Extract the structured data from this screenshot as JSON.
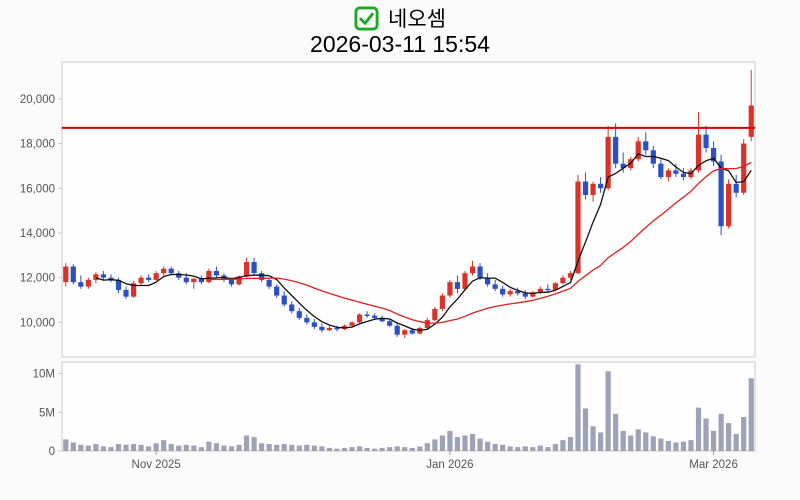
{
  "header": {
    "stock_name": "네오셈",
    "timestamp": "2026-03-11 15:54",
    "checkbox_icon_color": "#1fa826"
  },
  "chart_data": {
    "type": "candlestick",
    "title": "네오셈",
    "subtitle": "2026-03-11 15:54",
    "panels": [
      "price",
      "volume"
    ],
    "price_axis": {
      "tick_values": [
        10000,
        12000,
        14000,
        16000,
        18000,
        20000
      ],
      "tick_labels": [
        "10,000",
        "12,000",
        "14,000",
        "16,000",
        "18,000",
        "20,000"
      ],
      "range": [
        8450,
        21650
      ]
    },
    "volume_axis": {
      "tick_values": [
        0,
        5,
        10
      ],
      "tick_labels": [
        "0",
        "5M",
        "10M"
      ],
      "range": [
        0,
        11.5
      ],
      "unit": "millions"
    },
    "x_axis": {
      "ticks": [
        {
          "label": "Nov 2025",
          "index": 12
        },
        {
          "label": "Jan 2026",
          "index": 51
        },
        {
          "label": "Mar 2026",
          "index": 86
        }
      ]
    },
    "reference_line": {
      "value": 18700,
      "color": "#d40000"
    },
    "moving_averages": [
      {
        "window": 5,
        "color": "#111111"
      },
      {
        "window": 20,
        "color": "#e02020"
      }
    ],
    "colors": {
      "up": "#d9342b",
      "down": "#2b4fc4",
      "volume_bar": "#9ea2b6",
      "panel_fill": "#fefeff",
      "panel_border": "#c9c9c9",
      "axis_text": "#555555"
    },
    "ohlcv_fields": [
      "open",
      "high",
      "low",
      "close",
      "volume_millions"
    ],
    "candles": [
      [
        11800,
        12650,
        11600,
        12500,
        1.5
      ],
      [
        12500,
        12600,
        11700,
        11800,
        1.1
      ],
      [
        11800,
        12100,
        11500,
        11600,
        0.8
      ],
      [
        11600,
        12000,
        11500,
        11900,
        0.7
      ],
      [
        11900,
        12250,
        11750,
        12150,
        0.9
      ],
      [
        12150,
        12300,
        11900,
        12000,
        0.6
      ],
      [
        12000,
        12150,
        11800,
        11900,
        0.5
      ],
      [
        11900,
        12000,
        11300,
        11450,
        0.9
      ],
      [
        11450,
        11600,
        11050,
        11150,
        0.8
      ],
      [
        11150,
        11850,
        11100,
        11750,
        0.9
      ],
      [
        11750,
        12100,
        11650,
        12000,
        0.8
      ],
      [
        12000,
        12150,
        11800,
        11900,
        0.6
      ],
      [
        11900,
        12300,
        11850,
        12200,
        1.0
      ],
      [
        12200,
        12500,
        12100,
        12400,
        1.4
      ],
      [
        12400,
        12500,
        12100,
        12200,
        0.9
      ],
      [
        12200,
        12300,
        11900,
        12000,
        0.7
      ],
      [
        12000,
        12200,
        11700,
        11800,
        0.8
      ],
      [
        11800,
        12000,
        11500,
        11950,
        0.7
      ],
      [
        11950,
        12100,
        11700,
        11800,
        0.5
      ],
      [
        11800,
        12400,
        11750,
        12300,
        1.2
      ],
      [
        12300,
        12500,
        12000,
        12100,
        1.0
      ],
      [
        12100,
        12200,
        11800,
        11900,
        0.7
      ],
      [
        11900,
        12000,
        11600,
        11700,
        0.6
      ],
      [
        11700,
        12100,
        11650,
        12050,
        0.8
      ],
      [
        12050,
        12900,
        12000,
        12700,
        2.0
      ],
      [
        12700,
        12900,
        12100,
        12200,
        1.8
      ],
      [
        12200,
        12300,
        11800,
        11900,
        1.0
      ],
      [
        11900,
        12000,
        11500,
        11600,
        0.9
      ],
      [
        11600,
        11700,
        11100,
        11200,
        0.8
      ],
      [
        11200,
        11400,
        10700,
        10800,
        0.9
      ],
      [
        10800,
        10950,
        10400,
        10500,
        0.8
      ],
      [
        10500,
        10650,
        10100,
        10200,
        0.7
      ],
      [
        10200,
        10350,
        9900,
        10000,
        0.8
      ],
      [
        10000,
        10150,
        9700,
        9800,
        0.7
      ],
      [
        9800,
        9950,
        9550,
        9650,
        0.6
      ],
      [
        9650,
        9850,
        9600,
        9750,
        0.4
      ],
      [
        9750,
        9850,
        9600,
        9700,
        0.3
      ],
      [
        9700,
        9900,
        9650,
        9850,
        0.4
      ],
      [
        9850,
        10050,
        9800,
        10000,
        0.5
      ],
      [
        10000,
        10400,
        9950,
        10350,
        0.6
      ],
      [
        10350,
        10500,
        10200,
        10300,
        0.4
      ],
      [
        10300,
        10400,
        10150,
        10200,
        0.3
      ],
      [
        10200,
        10300,
        10000,
        10050,
        0.4
      ],
      [
        10050,
        10150,
        9800,
        9850,
        0.5
      ],
      [
        9850,
        9950,
        9350,
        9450,
        0.6
      ],
      [
        9450,
        9700,
        9300,
        9650,
        0.5
      ],
      [
        9650,
        9750,
        9450,
        9500,
        0.4
      ],
      [
        9500,
        9800,
        9450,
        9750,
        0.6
      ],
      [
        9750,
        10200,
        9700,
        10100,
        1.0
      ],
      [
        10100,
        10700,
        10050,
        10600,
        1.5
      ],
      [
        10600,
        11300,
        10500,
        11200,
        2.0
      ],
      [
        11200,
        11900,
        11100,
        11800,
        2.6
      ],
      [
        11800,
        12100,
        11300,
        11500,
        1.8
      ],
      [
        11500,
        12300,
        11400,
        12200,
        2.0
      ],
      [
        12200,
        12750,
        12100,
        12500,
        2.2
      ],
      [
        12500,
        12650,
        11900,
        12000,
        1.6
      ],
      [
        12000,
        12200,
        11600,
        11700,
        1.2
      ],
      [
        11700,
        11900,
        11400,
        11500,
        0.9
      ],
      [
        11500,
        11650,
        11150,
        11250,
        0.8
      ],
      [
        11250,
        11500,
        11150,
        11400,
        0.6
      ],
      [
        11400,
        11550,
        11200,
        11300,
        0.5
      ],
      [
        11300,
        11450,
        11050,
        11150,
        0.6
      ],
      [
        11150,
        11400,
        11100,
        11350,
        0.5
      ],
      [
        11350,
        11600,
        11250,
        11500,
        0.7
      ],
      [
        11500,
        11700,
        11350,
        11450,
        0.5
      ],
      [
        11450,
        11800,
        11400,
        11750,
        0.9
      ],
      [
        11750,
        12100,
        11700,
        12000,
        1.4
      ],
      [
        12000,
        12300,
        11900,
        12200,
        1.8
      ],
      [
        12200,
        16600,
        12150,
        16300,
        11.2
      ],
      [
        16300,
        16700,
        15500,
        15700,
        5.5
      ],
      [
        15700,
        16300,
        15400,
        16200,
        3.2
      ],
      [
        16200,
        16500,
        15800,
        16000,
        2.4
      ],
      [
        16000,
        18800,
        15900,
        18300,
        10.3
      ],
      [
        18300,
        18900,
        16900,
        17100,
        4.8
      ],
      [
        17100,
        17600,
        16700,
        16900,
        2.6
      ],
      [
        16900,
        17400,
        16800,
        17300,
        2.0
      ],
      [
        17300,
        18300,
        17200,
        18100,
        2.8
      ],
      [
        18100,
        18500,
        17500,
        17700,
        2.4
      ],
      [
        17700,
        17900,
        16900,
        17100,
        1.9
      ],
      [
        17100,
        17300,
        16400,
        16500,
        1.6
      ],
      [
        16500,
        16900,
        16300,
        16800,
        1.3
      ],
      [
        16800,
        17100,
        16500,
        16650,
        1.1
      ],
      [
        16650,
        16900,
        16350,
        16500,
        1.2
      ],
      [
        16500,
        16900,
        16400,
        16800,
        1.4
      ],
      [
        16800,
        19400,
        16700,
        18400,
        5.6
      ],
      [
        18400,
        18800,
        17600,
        17800,
        4.2
      ],
      [
        17800,
        18100,
        17000,
        17200,
        2.6
      ],
      [
        17200,
        17500,
        13900,
        14300,
        4.8
      ],
      [
        14300,
        16400,
        14200,
        16200,
        3.6
      ],
      [
        16200,
        16600,
        15600,
        15800,
        2.2
      ],
      [
        15800,
        18200,
        15700,
        18000,
        4.4
      ],
      [
        18300,
        21300,
        18100,
        19700,
        9.4
      ]
    ]
  }
}
